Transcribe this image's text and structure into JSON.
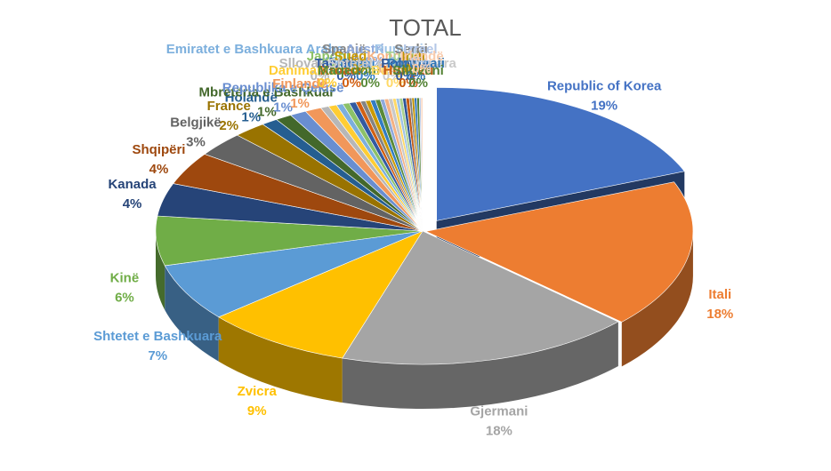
{
  "chart_data": {
    "type": "pie",
    "title": "TOTAL",
    "style": "3d-exploded-pie",
    "slices": [
      {
        "label": "Republic of Korea",
        "value": 19,
        "pct": "19%",
        "color": "#4472C4"
      },
      {
        "label": "Itali",
        "value": 18,
        "pct": "18%",
        "color": "#ED7D31"
      },
      {
        "label": "Gjermani",
        "value": 18,
        "pct": "18%",
        "color": "#A5A5A5"
      },
      {
        "label": "Zvicra",
        "value": 9,
        "pct": "9%",
        "color": "#FFC000"
      },
      {
        "label": "Shtetet e Bashkuara",
        "value": 7,
        "pct": "7%",
        "color": "#5B9BD5"
      },
      {
        "label": "Kinë",
        "value": 6,
        "pct": "6%",
        "color": "#70AD47"
      },
      {
        "label": "Kanada",
        "value": 4,
        "pct": "4%",
        "color": "#264478"
      },
      {
        "label": "Shqipëri",
        "value": 4,
        "pct": "4%",
        "color": "#9E480E"
      },
      {
        "label": "Belgjikë",
        "value": 3,
        "pct": "3%",
        "color": "#636363"
      },
      {
        "label": "France",
        "value": 2,
        "pct": "2%",
        "color": "#997300"
      },
      {
        "label": "Holandë",
        "value": 1,
        "pct": "1%",
        "color": "#255E91"
      },
      {
        "label": "Mbretëria e Bashkuar",
        "value": 1,
        "pct": "1%",
        "color": "#43682B"
      },
      {
        "label": "Republika e Çekisë",
        "value": 1,
        "pct": "1%",
        "color": "#698ED0"
      },
      {
        "label": "Finlandë",
        "value": 1,
        "pct": "1%",
        "color": "#F1975A"
      },
      {
        "label": "Sllovaki",
        "value": 0.5,
        "pct": "0%",
        "color": "#B7B7B7"
      },
      {
        "label": "Danimarkë",
        "value": 0.5,
        "pct": "0%",
        "color": "#FFCD33"
      },
      {
        "label": "Emiratet e Bashkuara Arabe",
        "value": 0.4,
        "pct": "0%",
        "color": "#7CAFDD"
      },
      {
        "label": "Japoni",
        "value": 0.4,
        "pct": "0%",
        "color": "#8CC168"
      },
      {
        "label": "Tajvan",
        "value": 0.4,
        "pct": "0%",
        "color": "#335AA1"
      },
      {
        "label": "Kroaci",
        "value": 0.3,
        "pct": "0%",
        "color": "#D26012"
      },
      {
        "label": "Spanjë",
        "value": 0.3,
        "pct": "0%",
        "color": "#848484"
      },
      {
        "label": "Suedi",
        "value": 0.3,
        "pct": "0%",
        "color": "#CC9A00"
      },
      {
        "label": "Greqi",
        "value": 0.3,
        "pct": "0%",
        "color": "#327DC2"
      },
      {
        "label": "Maqedoni",
        "value": 0.3,
        "pct": "0%",
        "color": "#5A8A39"
      },
      {
        "label": "Austri",
        "value": 0.25,
        "pct": "0%",
        "color": "#8FAADC"
      },
      {
        "label": "Kongo",
        "value": 0.25,
        "pct": "0%",
        "color": "#F4B183"
      },
      {
        "label": "Shtetet e Bashkuara",
        "value": 0.25,
        "pct": "0%",
        "color": "#C9C9C9"
      },
      {
        "label": "Bullgari",
        "value": 0.2,
        "pct": "0%",
        "color": "#FFD966"
      },
      {
        "label": "Rumani",
        "value": 0.2,
        "pct": "0%",
        "color": "#9DC3E6"
      },
      {
        "label": "Turqi",
        "value": 0.2,
        "pct": "0%",
        "color": "#A9D18E"
      },
      {
        "label": "Polonia",
        "value": 0.2,
        "pct": "0%",
        "color": "#2F5597"
      },
      {
        "label": "Hungari",
        "value": 0.2,
        "pct": "0%",
        "color": "#C55A11"
      },
      {
        "label": "Serbi",
        "value": 0.15,
        "pct": "0%",
        "color": "#7F7F7F"
      },
      {
        "label": "Indi",
        "value": 0.15,
        "pct": "0%",
        "color": "#BF9000"
      },
      {
        "label": "Portugali",
        "value": 0.15,
        "pct": "0%",
        "color": "#2E75B6"
      },
      {
        "label": "Slloveni",
        "value": 0.15,
        "pct": "0%",
        "color": "#548235"
      },
      {
        "label": "Izrael",
        "value": 0.1,
        "pct": "0%",
        "color": "#B4C7E7"
      },
      {
        "label": "Irlandë",
        "value": 0.1,
        "pct": "0%",
        "color": "#F8CBAD"
      }
    ]
  }
}
